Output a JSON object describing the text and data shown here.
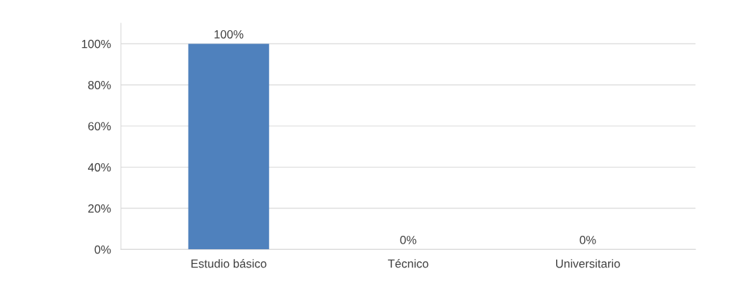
{
  "chart_data": {
    "type": "bar",
    "categories": [
      "Estudio básico",
      "Técnico",
      "Universitario"
    ],
    "values": [
      100,
      0,
      0
    ],
    "value_labels": [
      "100%",
      "0%",
      "0%"
    ],
    "color": "#4f81bd",
    "ylim": [
      0,
      110
    ],
    "yticks": [
      {
        "value": 0,
        "label": "0%"
      },
      {
        "value": 20,
        "label": "20%"
      },
      {
        "value": 40,
        "label": "40%"
      },
      {
        "value": 60,
        "label": "60%"
      },
      {
        "value": 80,
        "label": "80%"
      },
      {
        "value": 100,
        "label": "100%"
      }
    ],
    "grid": "y"
  }
}
